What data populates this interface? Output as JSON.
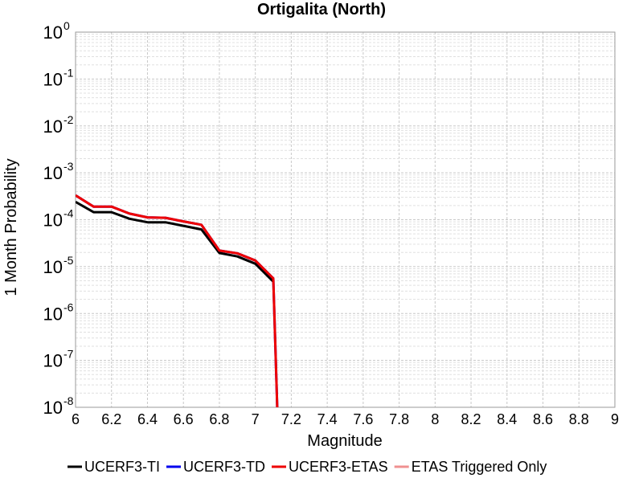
{
  "chart_data": {
    "type": "line",
    "title": "Ortigalita (North)",
    "xlabel": "Magnitude",
    "ylabel": "1 Month Probability",
    "xlim": [
      6,
      9
    ],
    "ylim": [
      1e-08,
      1
    ],
    "yscale": "log",
    "grid": true,
    "legend_placement": "bottom",
    "x_ticks": [
      "6",
      "6.2",
      "6.4",
      "6.6",
      "6.8",
      "7",
      "7.2",
      "7.4",
      "7.6",
      "7.8",
      "8",
      "8.2",
      "8.4",
      "8.6",
      "8.8",
      "9"
    ],
    "y_ticks": [
      {
        "base": "10",
        "exp": "0",
        "value": 1
      },
      {
        "base": "10",
        "exp": "-1",
        "value": 0.1
      },
      {
        "base": "10",
        "exp": "-2",
        "value": 0.01
      },
      {
        "base": "10",
        "exp": "-3",
        "value": 0.001
      },
      {
        "base": "10",
        "exp": "-4",
        "value": 0.0001
      },
      {
        "base": "10",
        "exp": "-5",
        "value": 1e-05
      },
      {
        "base": "10",
        "exp": "-6",
        "value": 1e-06
      },
      {
        "base": "10",
        "exp": "-7",
        "value": 1e-07
      },
      {
        "base": "10",
        "exp": "-8",
        "value": 1e-08
      }
    ],
    "series": [
      {
        "name": "UCERF3-TI",
        "color": "#000000",
        "x": [
          6.0,
          6.1,
          6.2,
          6.3,
          6.4,
          6.5,
          6.6,
          6.7,
          6.8,
          6.9,
          7.0,
          7.1
        ],
        "y": [
          0.00024,
          0.000145,
          0.000145,
          0.000105,
          8.8e-05,
          8.8e-05,
          7.4e-05,
          6.2e-05,
          1.95e-05,
          1.65e-05,
          1.15e-05,
          4.8e-06
        ]
      },
      {
        "name": "UCERF3-TD",
        "color": "#0000ee",
        "x": [
          6.0,
          6.1,
          6.2,
          6.3,
          6.4,
          6.5,
          6.6,
          6.7,
          6.8,
          6.9,
          7.0,
          7.1,
          7.13
        ],
        "y": [
          0.00033,
          0.00019,
          0.00019,
          0.000135,
          0.000112,
          0.00011,
          9.2e-05,
          7.8e-05,
          2.2e-05,
          1.92e-05,
          1.35e-05,
          5.6e-06,
          1e-09
        ]
      },
      {
        "name": "UCERF3-ETAS",
        "color": "#ee0000",
        "x": [
          6.0,
          6.1,
          6.2,
          6.3,
          6.4,
          6.5,
          6.6,
          6.7,
          6.8,
          6.9,
          7.0,
          7.1,
          7.13
        ],
        "y": [
          0.00033,
          0.00019,
          0.00019,
          0.000135,
          0.000112,
          0.00011,
          9.2e-05,
          7.8e-05,
          2.2e-05,
          1.92e-05,
          1.35e-05,
          5.6e-06,
          1e-09
        ]
      },
      {
        "name": "ETAS Triggered Only",
        "color": "#f09090",
        "x": [],
        "y": []
      }
    ]
  }
}
